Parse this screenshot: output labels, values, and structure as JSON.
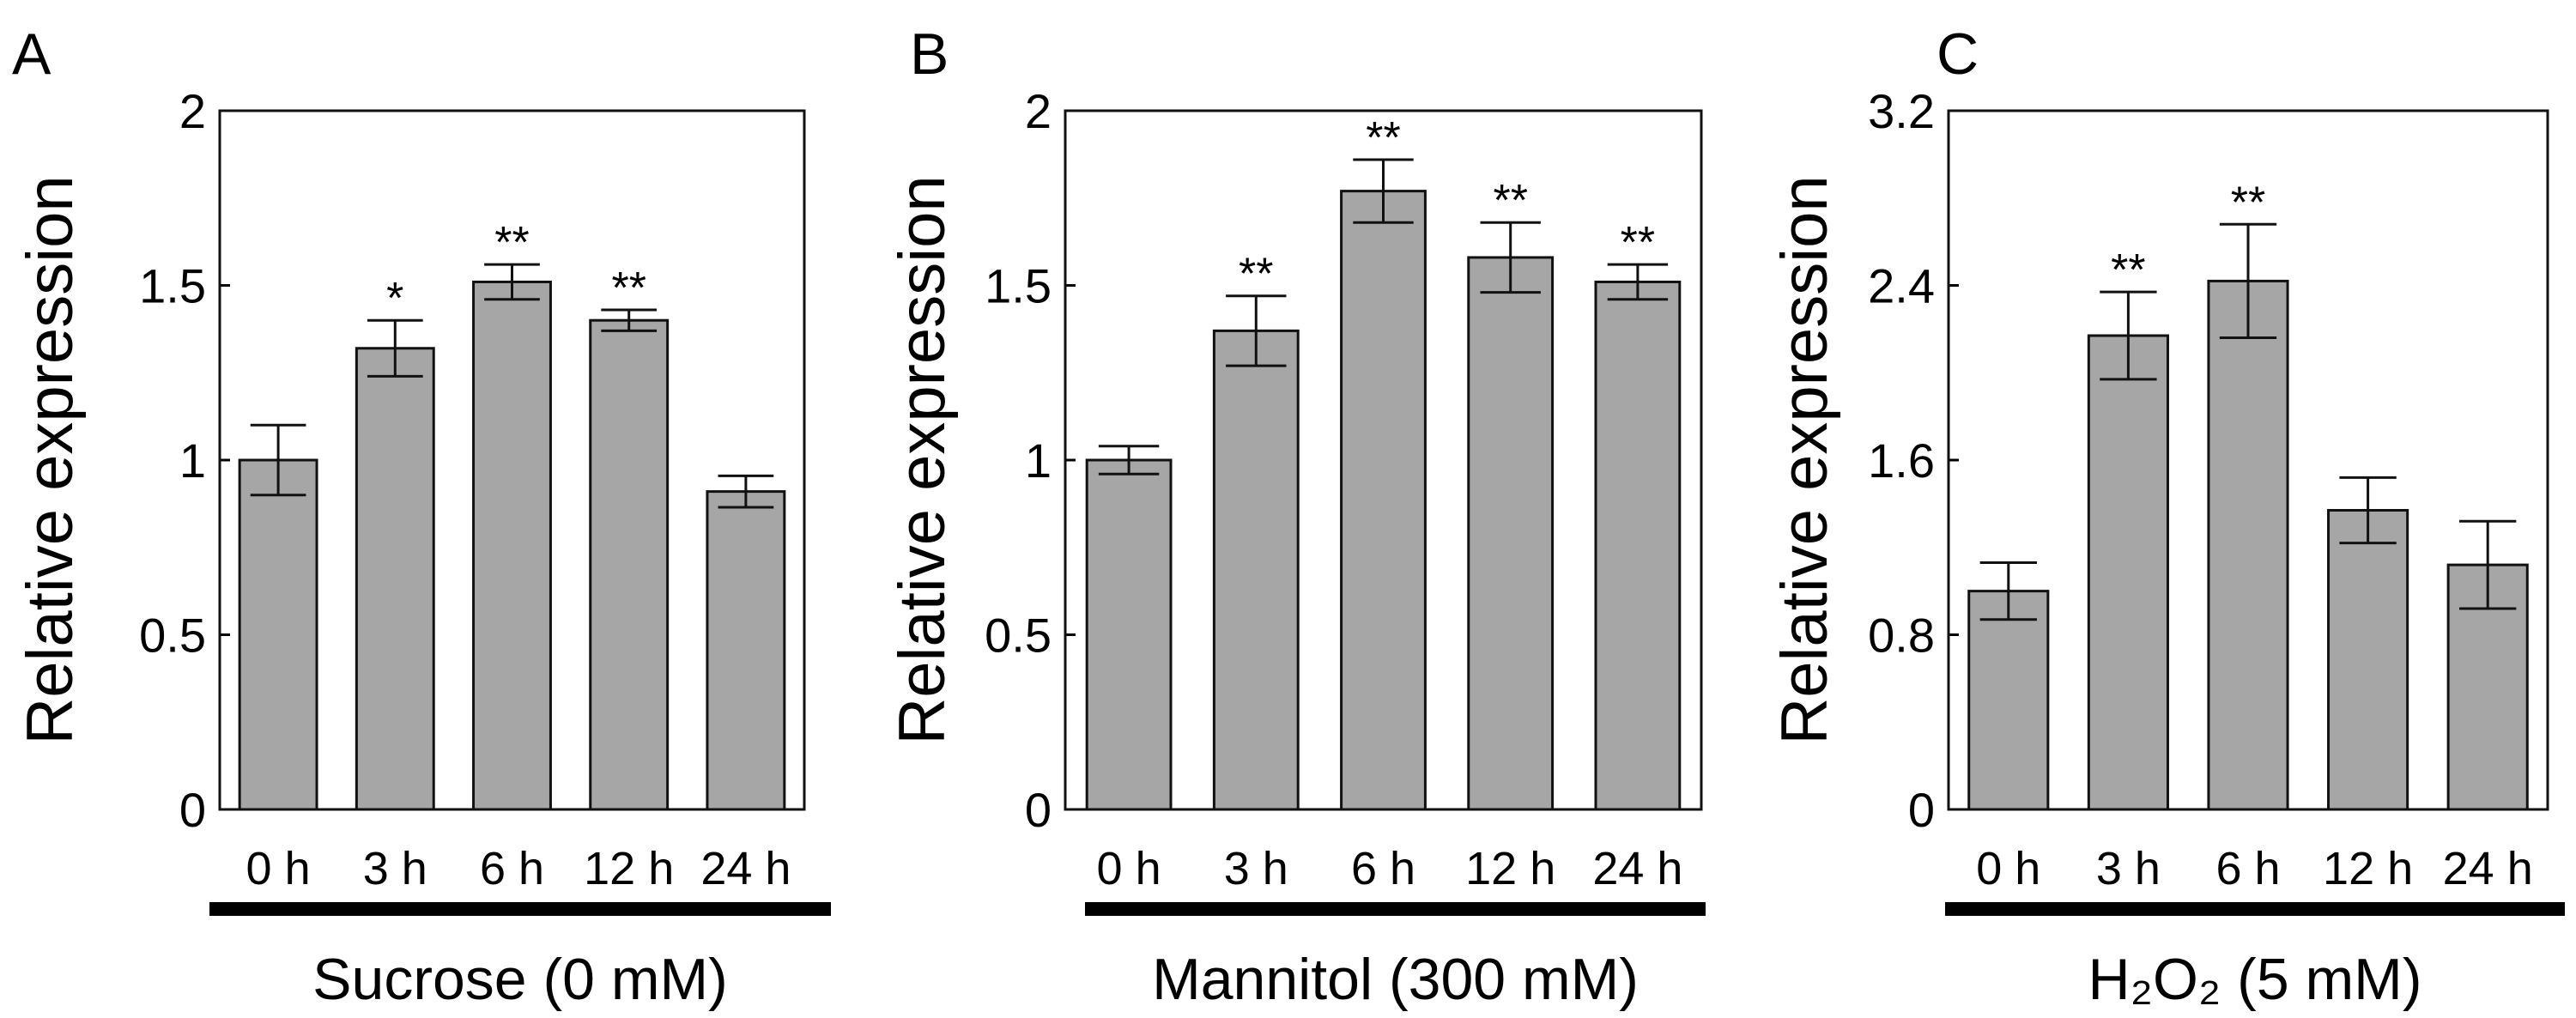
{
  "chart_data": [
    {
      "type": "bar",
      "panel_label": "A",
      "title": "",
      "xlabel": "Sucrose (0 mM)",
      "ylabel": "Relative expression",
      "categories": [
        "0 h",
        "3 h",
        "6 h",
        "12 h",
        "24 h"
      ],
      "values": [
        1.0,
        1.32,
        1.51,
        1.4,
        0.91
      ],
      "errors": [
        0.1,
        0.08,
        0.05,
        0.03,
        0.045
      ],
      "significance": [
        "",
        "*",
        "**",
        "**",
        ""
      ],
      "ylim": [
        0,
        2
      ],
      "yticks": [
        0,
        0.5,
        1,
        1.5,
        2
      ],
      "ytick_labels": [
        "0",
        "0.5",
        "1",
        "1.5",
        "2"
      ],
      "bar_color": "#a6a6a6",
      "grid": false
    },
    {
      "type": "bar",
      "panel_label": "B",
      "title": "",
      "xlabel": "Mannitol (300 mM)",
      "ylabel": "Relative expression",
      "categories": [
        "0 h",
        "3 h",
        "6 h",
        "12 h",
        "24 h"
      ],
      "values": [
        1.0,
        1.37,
        1.77,
        1.58,
        1.51
      ],
      "errors": [
        0.04,
        0.1,
        0.09,
        0.1,
        0.05
      ],
      "significance": [
        "",
        "**",
        "**",
        "**",
        "**"
      ],
      "ylim": [
        0,
        2
      ],
      "yticks": [
        0,
        0.5,
        1,
        1.5,
        2
      ],
      "ytick_labels": [
        "0",
        "0.5",
        "1",
        "1.5",
        "2"
      ],
      "bar_color": "#a6a6a6",
      "grid": false
    },
    {
      "type": "bar",
      "panel_label": "C",
      "title": "",
      "xlabel": "H₂O₂ (5 mM)",
      "ylabel": "Relative expression",
      "categories": [
        "0 h",
        "3 h",
        "6 h",
        "12 h",
        "24 h"
      ],
      "values": [
        1.0,
        2.17,
        2.42,
        1.37,
        1.12
      ],
      "errors": [
        0.13,
        0.2,
        0.26,
        0.15,
        0.2
      ],
      "significance": [
        "",
        "**",
        "**",
        "",
        ""
      ],
      "ylim": [
        0,
        3.2
      ],
      "yticks": [
        0,
        0.8,
        1.6,
        2.4,
        3.2
      ],
      "ytick_labels": [
        "0",
        "0.8",
        "1.6",
        "2.4",
        "3.2"
      ],
      "bar_color": "#a6a6a6",
      "grid": false
    }
  ]
}
